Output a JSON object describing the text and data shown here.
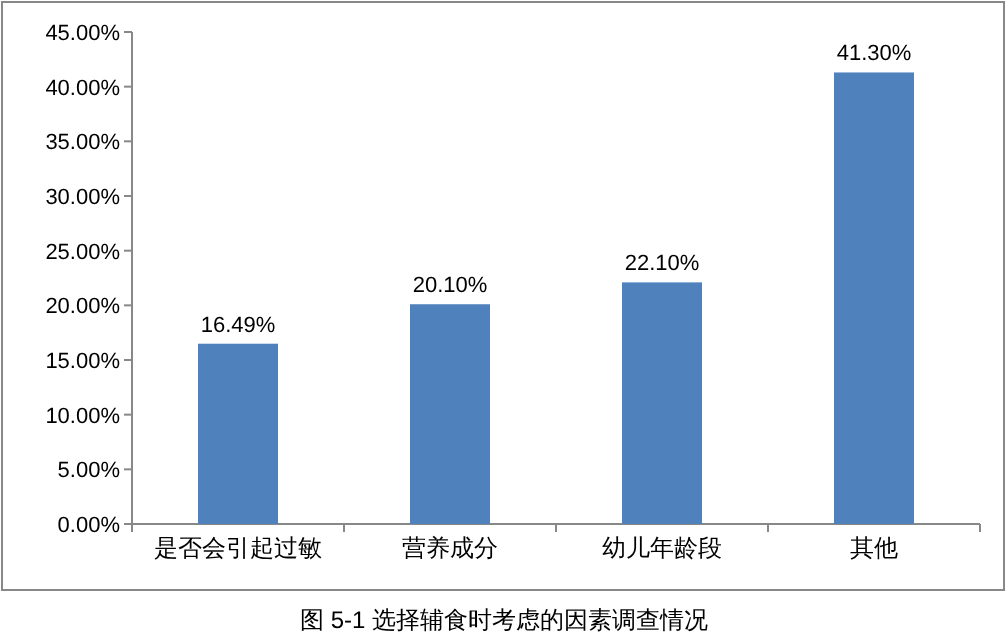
{
  "chart_data": {
    "type": "bar",
    "categories": [
      "是否会引起过敏",
      "营养成分",
      "幼儿年龄段",
      "其他"
    ],
    "values": [
      16.49,
      20.1,
      22.1,
      41.3
    ],
    "color": "#4f81bd",
    "value_labels": [
      "16.49%",
      "20.10%",
      "22.10%",
      "41.30%"
    ],
    "ylim": [
      0,
      45
    ],
    "yticks": [
      {
        "value": 0,
        "label": "0.00%"
      },
      {
        "value": 5,
        "label": "5.00%"
      },
      {
        "value": 10,
        "label": "10.00%"
      },
      {
        "value": 15,
        "label": "15.00%"
      },
      {
        "value": 20,
        "label": "20.00%"
      },
      {
        "value": 25,
        "label": "25.00%"
      },
      {
        "value": 30,
        "label": "30.00%"
      },
      {
        "value": 35,
        "label": "35.00%"
      },
      {
        "value": 40,
        "label": "40.00%"
      },
      {
        "value": 45,
        "label": "45.00%"
      }
    ],
    "annotations": [
      "图 5-1   选择辅食时考虑的因素调查情况"
    ]
  }
}
